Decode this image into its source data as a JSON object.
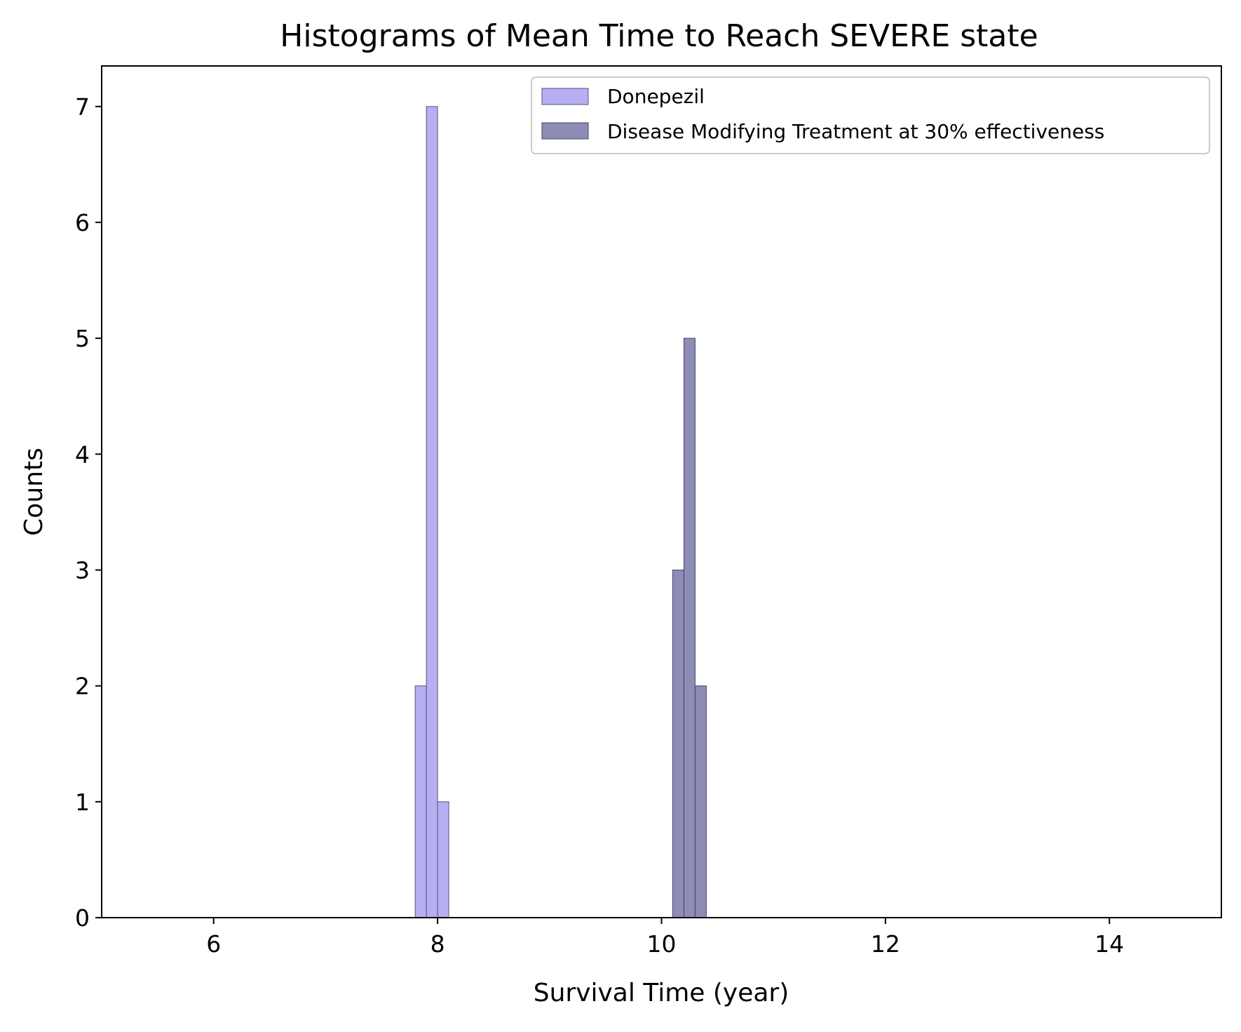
{
  "chart_data": {
    "type": "bar",
    "title": "Histograms of Mean Time to Reach SEVERE state",
    "xlabel": "Survival Time (year)",
    "ylabel": "Counts",
    "xlim": [
      5,
      15
    ],
    "ylim": [
      0,
      7.35
    ],
    "xticks": [
      "6",
      "8",
      "10",
      "12",
      "14"
    ],
    "yticks": [
      "0",
      "1",
      "2",
      "3",
      "4",
      "5",
      "6",
      "7"
    ],
    "grid": false,
    "legend_position": "top-right",
    "bin_width": 0.1,
    "series": [
      {
        "name": "Donepezil",
        "color": "#b6b0f2",
        "bins": [
          {
            "start": 7.8,
            "count": 2
          },
          {
            "start": 7.9,
            "count": 7
          },
          {
            "start": 8.0,
            "count": 1
          }
        ]
      },
      {
        "name": "Disease Modifying Treatment at 30% effectiveness",
        "color": "#8c8cb6",
        "bins": [
          {
            "start": 10.1,
            "count": 3
          },
          {
            "start": 10.2,
            "count": 5
          },
          {
            "start": 10.3,
            "count": 2
          }
        ]
      }
    ]
  }
}
